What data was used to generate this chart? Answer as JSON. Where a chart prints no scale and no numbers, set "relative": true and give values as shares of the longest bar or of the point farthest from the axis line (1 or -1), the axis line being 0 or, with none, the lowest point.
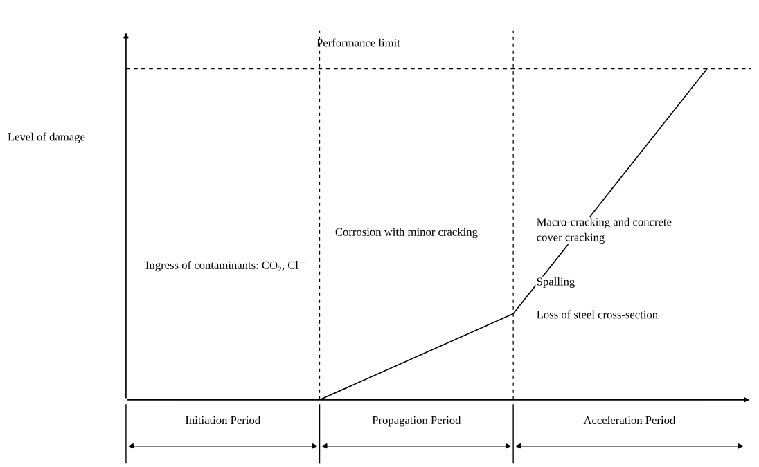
{
  "chart_data": {
    "type": "line",
    "relative": true,
    "ylabel": "Level of damage",
    "categories": [
      null,
      null,
      null,
      null
    ],
    "series": [
      {
        "color": "#000000",
        "values": [
          null,
          0,
          0.26,
          1
        ]
      }
    ],
    "ref_lines": [
      {
        "axis": "y",
        "value": 1,
        "label": "Performance limit",
        "line_style": "dashed",
        "color": "#000000"
      }
    ],
    "annotations": [
      "Ingress of contaminants: CO₂, Cl$^{−}$",
      "Corrosion with minor cracking",
      "Macro-cracking and concrete cover cracking",
      "Spalling",
      "Loss of steel cross-section",
      "Initiation Period",
      "Propagation Period",
      "Acceleration Period"
    ],
    "marker": "none",
    "line_style": "solid"
  }
}
